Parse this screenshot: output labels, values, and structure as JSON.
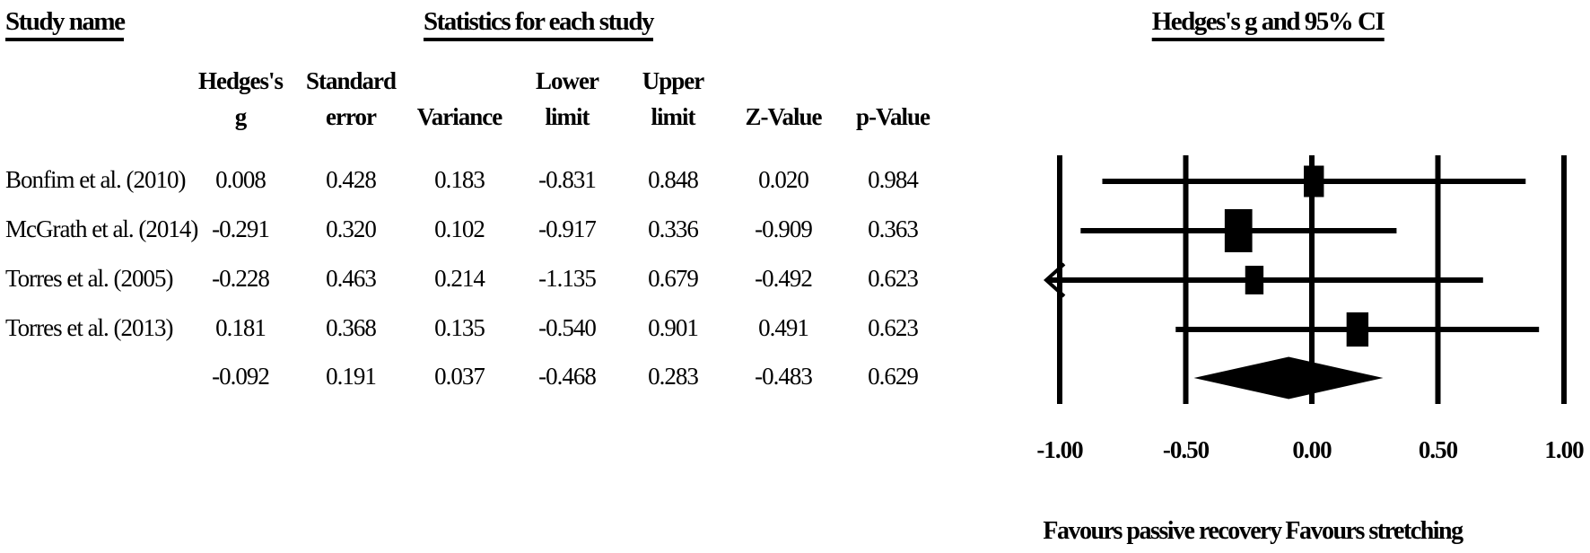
{
  "header": {
    "study_col_title": "Study name",
    "stats_title": "Statistics for each study",
    "plot_title": "Hedges's g and 95% CI"
  },
  "table": {
    "columns": [
      {
        "lines": [
          "Hedges's",
          "g"
        ]
      },
      {
        "lines": [
          "Standard",
          "error"
        ]
      },
      {
        "lines": [
          "Variance"
        ]
      },
      {
        "lines": [
          "Lower",
          "limit"
        ]
      },
      {
        "lines": [
          "Upper",
          "limit"
        ]
      },
      {
        "lines": [
          "Z-Value"
        ]
      },
      {
        "lines": [
          "p-Value"
        ]
      }
    ],
    "rows": [
      {
        "study": "Bonfim et al. (2010)",
        "values": [
          "0.008",
          "0.428",
          "0.183",
          "-0.831",
          "0.848",
          "0.020",
          "0.984"
        ]
      },
      {
        "study": "McGrath et al. (2014)",
        "values": [
          "-0.291",
          "0.320",
          "0.102",
          "-0.917",
          "0.336",
          "-0.909",
          "0.363"
        ]
      },
      {
        "study": "Torres et al. (2005)",
        "values": [
          "-0.228",
          "0.463",
          "0.214",
          "-1.135",
          "0.679",
          "-0.492",
          "0.623"
        ]
      },
      {
        "study": "Torres et al. (2013)",
        "values": [
          "0.181",
          "0.368",
          "0.135",
          "-0.540",
          "0.901",
          "0.491",
          "0.623"
        ]
      },
      {
        "study": "",
        "values": [
          "-0.092",
          "0.191",
          "0.037",
          "-0.468",
          "0.283",
          "-0.483",
          "0.629"
        ]
      }
    ]
  },
  "chart_data": {
    "type": "forest",
    "title": "Hedges's g and 95% CI",
    "effect_measure": "Hedges's g",
    "xlim": [
      -1.0,
      1.0
    ],
    "ticks": [
      -1.0,
      -0.5,
      0.0,
      0.5,
      1.0
    ],
    "tick_labels": [
      "-1.00",
      "-0.50",
      "0.00",
      "0.50",
      "1.00"
    ],
    "studies": [
      {
        "name": "Bonfim et al. (2010)",
        "g": 0.008,
        "lower": -0.831,
        "upper": 0.848,
        "rel_weight": 0.53
      },
      {
        "name": "McGrath et al. (2014)",
        "g": -0.291,
        "lower": -0.917,
        "upper": 0.336,
        "rel_weight": 1.0
      },
      {
        "name": "Torres et al. (2005)",
        "g": -0.228,
        "lower": -1.135,
        "upper": 0.679,
        "rel_weight": 0.44
      },
      {
        "name": "Torres et al. (2013)",
        "g": 0.181,
        "lower": -0.54,
        "upper": 0.901,
        "rel_weight": 0.63
      }
    ],
    "summary": {
      "g": -0.092,
      "lower": -0.468,
      "upper": 0.283
    },
    "footer_left": "Favours passive recovery",
    "footer_right": "Favours stretching"
  },
  "colors": {
    "foreground": "#000000",
    "background": "#ffffff"
  }
}
